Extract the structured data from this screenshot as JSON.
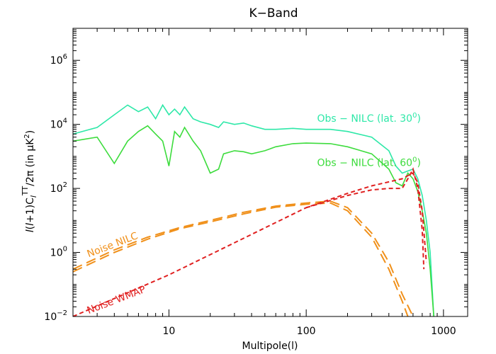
{
  "chart_data": {
    "type": "line",
    "title": "K−Band",
    "xlabel": "Multipole(l)",
    "ylabel": "l(l+1)C_l^TT/2π  (in μK²)",
    "xscale": "log",
    "yscale": "log",
    "xlim": [
      2,
      1500
    ],
    "ylim": [
      0.01,
      10000000
    ],
    "x_ticks": [
      {
        "value": 10,
        "label": "10"
      },
      {
        "value": 100,
        "label": "100"
      },
      {
        "value": 1000,
        "label": "1000"
      }
    ],
    "y_ticks": [
      {
        "value": 0.01,
        "base": "10",
        "exp": "−2"
      },
      {
        "value": 1,
        "base": "10",
        "exp": "0"
      },
      {
        "value": 100,
        "base": "10",
        "exp": "2"
      },
      {
        "value": 10000,
        "base": "10",
        "exp": "4"
      },
      {
        "value": 1000000,
        "base": "10",
        "exp": "6"
      }
    ],
    "series": [
      {
        "name": "Obs − NILC (lat. 30°)",
        "color": "#2ee8a8",
        "dash": "solid",
        "label_text": "Obs − NILC (lat. 30",
        "label_sup": "0",
        "label_tail": ")",
        "label_at": [
          120,
          12000
        ],
        "x": [
          2,
          3,
          4,
          5,
          6,
          7,
          8,
          9,
          10,
          11,
          12,
          13,
          15,
          17,
          20,
          23,
          25,
          30,
          35,
          40,
          50,
          60,
          80,
          100,
          150,
          200,
          300,
          400,
          450,
          500,
          550,
          600,
          650,
          700,
          750,
          800,
          850
        ],
        "values": [
          5000,
          8000,
          20000,
          40000,
          25000,
          35000,
          15000,
          40000,
          20000,
          30000,
          20000,
          35000,
          15000,
          12000,
          10000,
          8000,
          12000,
          10000,
          11000,
          9000,
          7000,
          7000,
          7500,
          7000,
          7000,
          6000,
          4000,
          1500,
          500,
          300,
          350,
          400,
          200,
          60,
          10,
          1,
          0.01
        ]
      },
      {
        "name": "Obs − NILC (lat. 60°)",
        "color": "#3ddc3d",
        "dash": "solid",
        "label_text": "Obs − NILC (lat. 60",
        "label_sup": "0",
        "label_tail": ")",
        "label_at": [
          120,
          500
        ],
        "x": [
          2,
          3,
          4,
          5,
          6,
          7,
          8,
          9,
          10,
          11,
          12,
          13,
          15,
          17,
          20,
          23,
          25,
          30,
          35,
          40,
          50,
          60,
          80,
          100,
          150,
          200,
          300,
          400,
          450,
          500,
          550,
          600,
          650,
          700,
          750,
          800,
          850
        ],
        "values": [
          3000,
          4000,
          600,
          3000,
          6000,
          9000,
          5000,
          3000,
          500,
          6000,
          4000,
          8000,
          3000,
          1500,
          300,
          400,
          1200,
          1500,
          1400,
          1200,
          1500,
          2000,
          2500,
          2600,
          2500,
          2000,
          1200,
          400,
          150,
          120,
          300,
          200,
          80,
          20,
          4,
          0.3,
          0.01
        ]
      },
      {
        "name": "Noise NILC",
        "color": "#f0901a",
        "dash": "long",
        "label_text": "Noise NILC",
        "label_at": [
          2.6,
          0.7
        ],
        "label_rotate": -21,
        "x": [
          2,
          4,
          7,
          12,
          20,
          35,
          60,
          100,
          150,
          200,
          300,
          400,
          500,
          600
        ],
        "values": [
          0.3,
          1.2,
          3,
          6,
          10,
          18,
          28,
          35,
          40,
          25,
          4,
          0.5,
          0.05,
          0.01
        ]
      },
      {
        "name": "Noise NILC (2)",
        "color": "#f0901a",
        "dash": "long",
        "x": [
          2,
          4,
          7,
          12,
          20,
          35,
          60,
          100,
          150,
          200,
          300,
          400,
          500,
          550
        ],
        "values": [
          0.25,
          1.0,
          2.6,
          5.5,
          9,
          16,
          26,
          32,
          35,
          20,
          3,
          0.3,
          0.03,
          0.01
        ]
      },
      {
        "name": "Noise WMAP",
        "color": "#e02020",
        "dash": "short",
        "label_text": "Noise WMAP",
        "label_at": [
          2.6,
          0.012
        ],
        "label_rotate": -21,
        "x": [
          2,
          10,
          100,
          200,
          300,
          400,
          500,
          550,
          600,
          650,
          700,
          750
        ],
        "values": [
          0.01,
          0.2,
          25,
          70,
          120,
          160,
          200,
          250,
          300,
          150,
          20,
          0.5
        ]
      },
      {
        "name": "Noise WMAP (2)",
        "color": "#e02020",
        "dash": "short",
        "x": [
          100,
          200,
          300,
          400,
          500,
          550,
          600,
          650,
          700,
          720
        ],
        "values": [
          25,
          60,
          90,
          100,
          100,
          200,
          400,
          100,
          5,
          0.3
        ]
      }
    ]
  }
}
